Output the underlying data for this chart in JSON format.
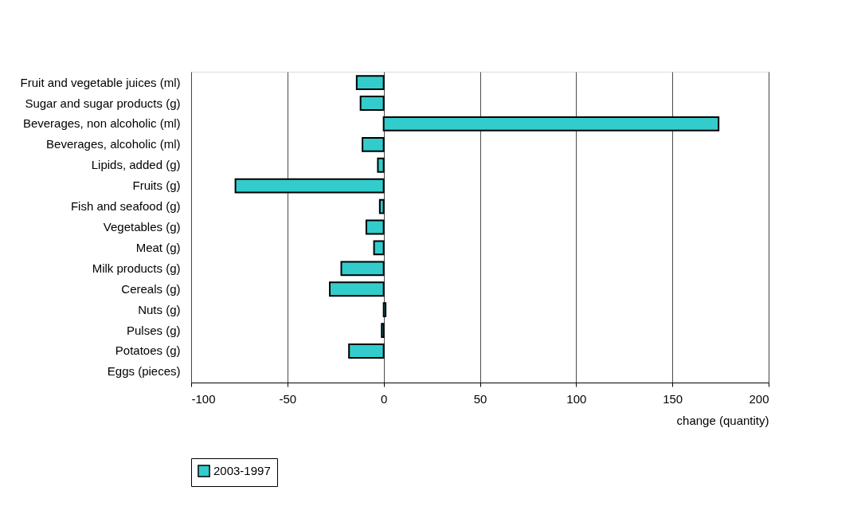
{
  "chart_data": {
    "type": "bar",
    "orientation": "horizontal",
    "xlabel": "change (quantity)",
    "categories": [
      "Fruit and vegetable juices (ml)",
      "Sugar and sugar products (g)",
      "Beverages, non alcoholic (ml)",
      "Beverages, alcoholic (ml)",
      "Lipids, added (g)",
      "Fruits (g)",
      "Fish and seafood (g)",
      "Vegetables (g)",
      "Meat (g)",
      "Milk products (g)",
      "Cereals (g)",
      "Nuts (g)",
      "Pulses (g)",
      "Potatoes (g)",
      "Eggs (pieces)"
    ],
    "series": [
      {
        "name": "2003-1997",
        "color": "#33cccc",
        "values": [
          -14,
          -12,
          174,
          -11,
          -3,
          -77,
          -2,
          -9,
          -5,
          -22,
          -28,
          1,
          -1,
          -18,
          null
        ]
      }
    ],
    "xlim": [
      -100,
      200
    ],
    "xticks": [
      -100,
      -50,
      0,
      50,
      100,
      150,
      200
    ],
    "grid": "x",
    "legend": "bottom"
  }
}
